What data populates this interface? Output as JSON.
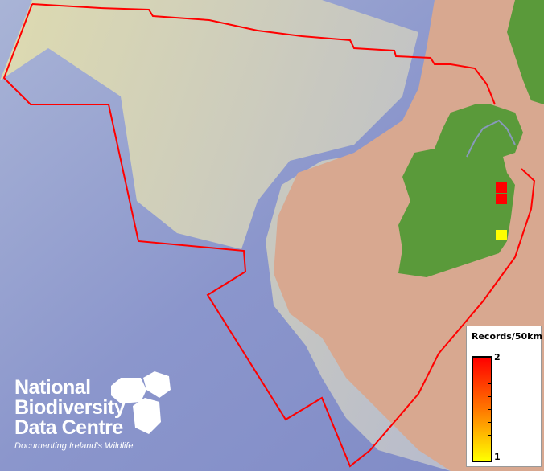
{
  "map": {
    "colors": {
      "boundary": "#ff0000",
      "land": "#5a9a3a",
      "shelf": "#e8dcc0",
      "deep": "#7f8cc8",
      "mainland": "#d8a890"
    },
    "records": [
      {
        "value": 2,
        "color": "#ff0000"
      },
      {
        "value": 2,
        "color": "#ff0000"
      },
      {
        "value": 1,
        "color": "#ffff00"
      }
    ]
  },
  "legend": {
    "title": "Records/50km",
    "max_label": "2",
    "min_label": "1",
    "colors": [
      "#ff0000",
      "#ffff00"
    ]
  },
  "logo": {
    "line1": "National",
    "line2": "Biodiversity",
    "line3": "Data Centre",
    "tagline": "Documenting Ireland's Wildlife"
  }
}
